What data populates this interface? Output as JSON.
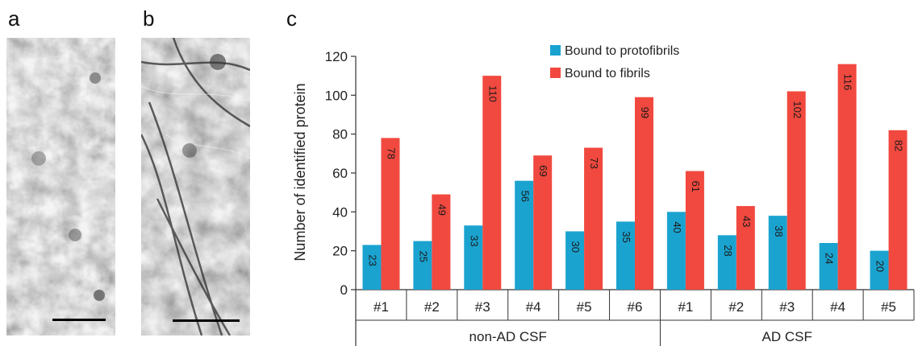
{
  "panels": {
    "a": "a",
    "b": "b",
    "c": "c"
  },
  "colors": {
    "protofibrils": "#1ba3d0",
    "fibrils": "#f1493f",
    "axis": "#333333"
  },
  "chart_data": {
    "type": "bar",
    "title": "",
    "xlabel": "",
    "ylabel": "Number of identified protein",
    "ylim": [
      0,
      120
    ],
    "yticks": [
      0,
      20,
      40,
      60,
      80,
      100,
      120
    ],
    "categories": [
      "#1",
      "#2",
      "#3",
      "#4",
      "#5",
      "#6",
      "#1",
      "#2",
      "#3",
      "#4",
      "#5"
    ],
    "groups": [
      {
        "label": "non-AD CSF",
        "start": 0,
        "count": 6
      },
      {
        "label": "AD CSF",
        "start": 6,
        "count": 5
      }
    ],
    "series": [
      {
        "name": "Bound to protofibrils",
        "values": [
          23,
          25,
          33,
          56,
          30,
          35,
          40,
          28,
          38,
          24,
          20
        ]
      },
      {
        "name": "Bound to fibrils",
        "values": [
          78,
          49,
          110,
          69,
          73,
          99,
          61,
          43,
          102,
          116,
          82
        ]
      }
    ],
    "legend_position": "top-center",
    "grid": false
  }
}
